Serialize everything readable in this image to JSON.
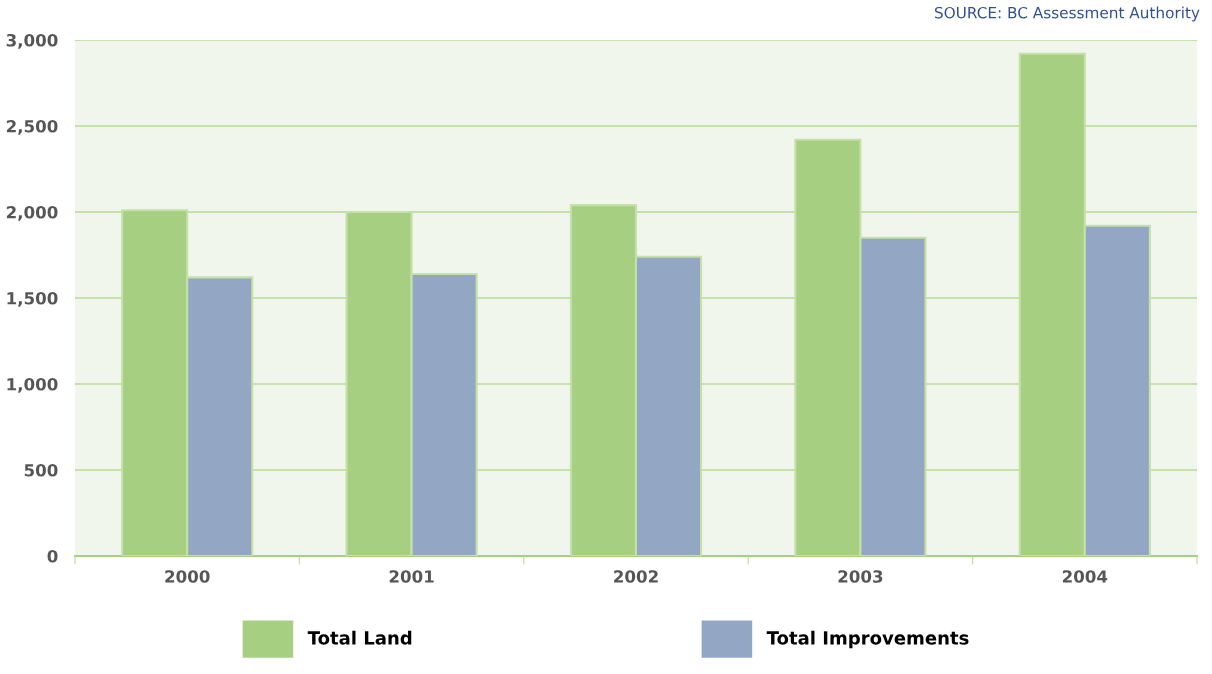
{
  "chart_data": {
    "type": "bar",
    "categories": [
      "2000",
      "2001",
      "2002",
      "2003",
      "2004"
    ],
    "series": [
      {
        "name": "Total Land",
        "color": "#a6cf82",
        "values": [
          2010,
          2000,
          2040,
          2420,
          2920
        ]
      },
      {
        "name": "Total Improvements",
        "color": "#93a6c4",
        "values": [
          1620,
          1640,
          1740,
          1850,
          1920
        ]
      }
    ],
    "ylim": [
      0,
      3000
    ],
    "yticks": [
      0,
      {
        "value": 500,
        "label": "500"
      },
      {
        "value": 1000,
        "label": "1,000"
      },
      {
        "value": 1500,
        "label": "1,500"
      },
      {
        "value": 2000,
        "label": "2,000"
      },
      {
        "value": 2500,
        "label": "2,500"
      },
      {
        "value": 3000,
        "label": "3,000"
      }
    ],
    "grid": "y",
    "legend": "bottom",
    "annotations": [
      "SOURCE: BC Assessment Authority"
    ]
  }
}
